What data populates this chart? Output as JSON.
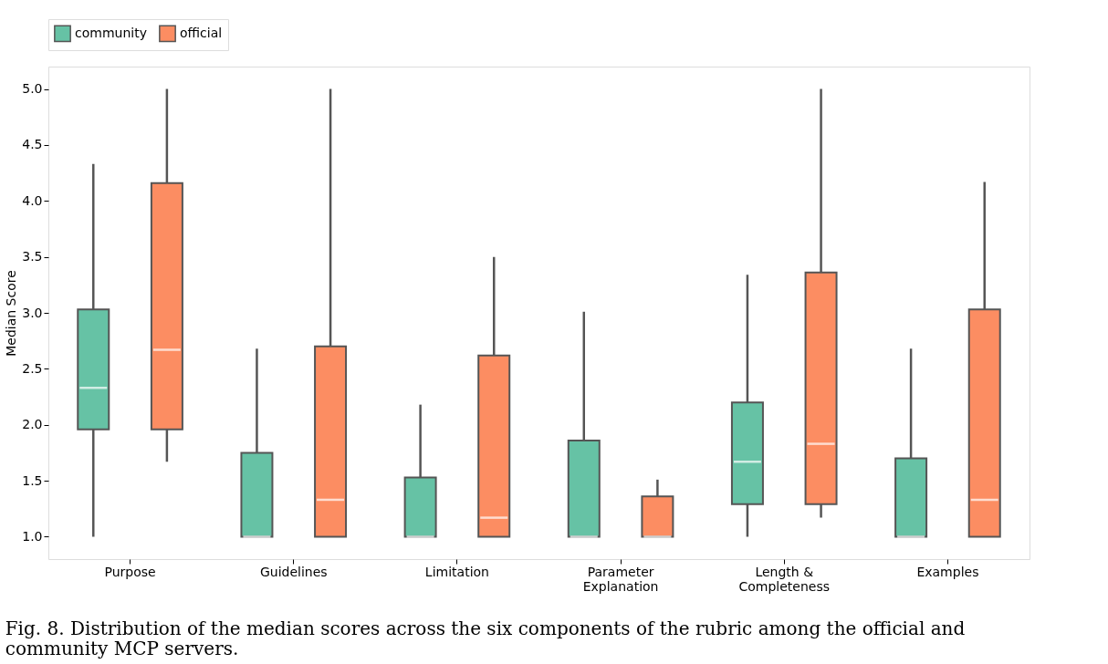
{
  "chart_data": {
    "type": "box",
    "categories": [
      "Purpose",
      "Guidelines",
      "Limitation",
      "Parameter\nExplanation",
      "Length &\nCompleteness",
      "Examples"
    ],
    "ylabel": "Median Score",
    "ylim": [
      0.8,
      5.2
    ],
    "yticks": [
      {
        "value": 1,
        "label": "1.0"
      },
      {
        "value": 1.5,
        "label": "1.5"
      },
      {
        "value": 2,
        "label": "2.0"
      },
      {
        "value": 2.5,
        "label": "2.5"
      },
      {
        "value": 3,
        "label": "3.0"
      },
      {
        "value": 3.5,
        "label": "3.5"
      },
      {
        "value": 4,
        "label": "4.0"
      },
      {
        "value": 4.5,
        "label": "4.5"
      },
      {
        "value": 5,
        "label": "5.0"
      }
    ],
    "grid": false,
    "legend": "top",
    "series": [
      {
        "name": "community",
        "color": "#66c2a5",
        "boxes": [
          {
            "low": 1.0,
            "q1": 1.96,
            "median": 2.33,
            "q3": 3.03,
            "high": 4.33
          },
          {
            "low": 1.0,
            "q1": 1.0,
            "median": 1.0,
            "q3": 1.75,
            "high": 2.68
          },
          {
            "low": 1.0,
            "q1": 1.0,
            "median": 1.0,
            "q3": 1.53,
            "high": 2.18
          },
          {
            "low": 1.0,
            "q1": 1.0,
            "median": 1.0,
            "q3": 1.86,
            "high": 3.01
          },
          {
            "low": 1.0,
            "q1": 1.29,
            "median": 1.67,
            "q3": 2.2,
            "high": 3.34
          },
          {
            "low": 1.0,
            "q1": 1.0,
            "median": 1.0,
            "q3": 1.7,
            "high": 2.68
          }
        ]
      },
      {
        "name": "official",
        "color": "#fc8d62",
        "boxes": [
          {
            "low": 1.67,
            "q1": 1.96,
            "median": 2.67,
            "q3": 4.16,
            "high": 5.0
          },
          {
            "low": 1.0,
            "q1": 1.0,
            "median": 1.33,
            "q3": 2.7,
            "high": 5.0
          },
          {
            "low": 1.0,
            "q1": 1.0,
            "median": 1.17,
            "q3": 2.62,
            "high": 3.5
          },
          {
            "low": 1.0,
            "q1": 1.0,
            "median": 1.0,
            "q3": 1.36,
            "high": 1.51
          },
          {
            "low": 1.17,
            "q1": 1.29,
            "median": 1.83,
            "q3": 3.36,
            "high": 5.0
          },
          {
            "low": 1.0,
            "q1": 1.0,
            "median": 1.33,
            "q3": 3.03,
            "high": 4.17
          }
        ]
      }
    ],
    "annotations": [
      "Fig. 8.  Distribution of the median scores across the six components of the rubric among the official and community MCP servers."
    ]
  }
}
